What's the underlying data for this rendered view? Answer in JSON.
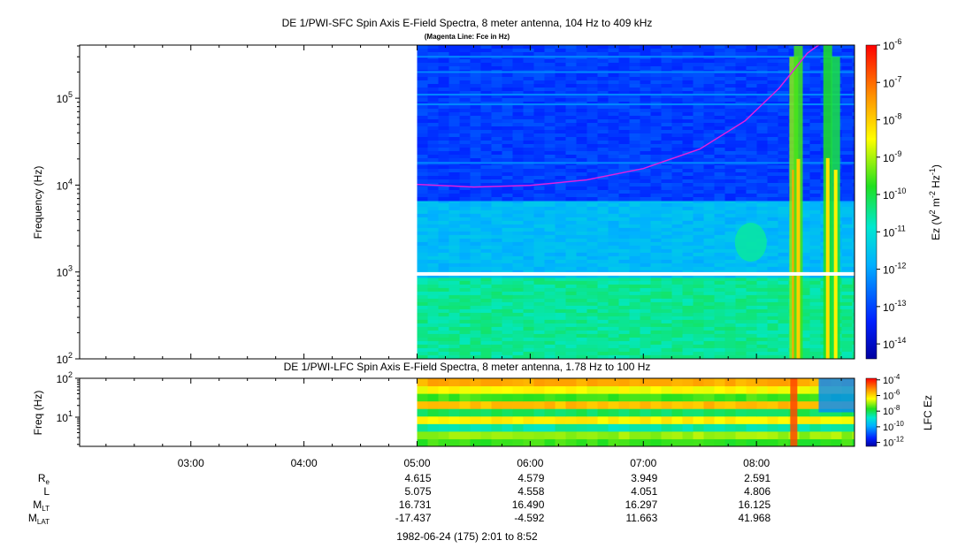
{
  "chart_data": [
    {
      "type": "heatmap",
      "title": "DE 1/PWI-SFC  Spin Axis E-Field Spectra, 8 meter antenna, 104 Hz to 409 kHz",
      "subtitle": "(Magenta Line: Fce in Hz)",
      "ylabel": "Frequency (Hz)",
      "yscale": "log",
      "ylim": [
        100,
        409000
      ],
      "yticks": [
        {
          "value": 100,
          "base": "10",
          "exp": "2"
        },
        {
          "value": 1000,
          "base": "10",
          "exp": "3"
        },
        {
          "value": 10000,
          "base": "10",
          "exp": "4"
        },
        {
          "value": 100000,
          "base": "10",
          "exp": "5"
        }
      ],
      "xlim_hours": [
        2.0167,
        8.8667
      ],
      "data_start_hours": 5.0,
      "colorbar": {
        "label_parts": [
          "Ez (V",
          "2",
          " m",
          "-2",
          " Hz",
          "-1",
          ")"
        ],
        "scale": "log",
        "range_exp": [
          -14.4,
          -6
        ],
        "ticks": [
          {
            "base": "10",
            "exp": "-6",
            "value_exp": -6
          },
          {
            "base": "10",
            "exp": "-7",
            "value_exp": -7
          },
          {
            "base": "10",
            "exp": "-8",
            "value_exp": -8
          },
          {
            "base": "10",
            "exp": "-9",
            "value_exp": -9
          },
          {
            "base": "10",
            "exp": "-10",
            "value_exp": -10
          },
          {
            "base": "10",
            "exp": "-11",
            "value_exp": -11
          },
          {
            "base": "10",
            "exp": "-12",
            "value_exp": -12
          },
          {
            "base": "10",
            "exp": "-13",
            "value_exp": -13
          },
          {
            "base": "10",
            "exp": "-14",
            "value_exp": -14
          }
        ]
      },
      "fce_line_color": "#e020e0",
      "fce_line": [
        {
          "t": 5.0,
          "f": 10200
        },
        {
          "t": 5.5,
          "f": 9500
        },
        {
          "t": 6.0,
          "f": 9900
        },
        {
          "t": 6.5,
          "f": 11500
        },
        {
          "t": 7.0,
          "f": 15500
        },
        {
          "t": 7.5,
          "f": 26000
        },
        {
          "t": 7.9,
          "f": 55000
        },
        {
          "t": 8.2,
          "f": 130000
        },
        {
          "t": 8.45,
          "f": 330000
        },
        {
          "t": 8.55,
          "f": 409000
        }
      ],
      "spectra_bands": [
        {
          "f_low": 100,
          "f_high": 950,
          "level_exp": -10.5
        },
        {
          "f_low": 950,
          "f_high": 6800,
          "level_exp": -11.7
        },
        {
          "f_low": 6800,
          "f_high": 409000,
          "level_exp": -13.1
        }
      ],
      "data_gap_hz": 950
    },
    {
      "type": "heatmap",
      "title": "DE 1/PWI-LFC  Spin Axis E-Field Spectra, 8 meter antenna, 1.78 Hz to 100 Hz",
      "ylabel": "Freq (Hz)",
      "yscale": "log",
      "ylim": [
        1.78,
        100
      ],
      "yticks": [
        {
          "value": 10,
          "base": "10",
          "exp": "1"
        },
        {
          "value": 100,
          "base": "10",
          "exp": "2"
        }
      ],
      "data_start_hours": 5.0,
      "colorbar": {
        "label": "LFC Ez",
        "scale": "log",
        "range_exp": [
          -12.5,
          -3.8
        ],
        "ticks": [
          {
            "base": "10",
            "exp": "-4",
            "value_exp": -4
          },
          {
            "base": "10",
            "exp": "-6",
            "value_exp": -6
          },
          {
            "base": "10",
            "exp": "-8",
            "value_exp": -8
          },
          {
            "base": "10",
            "exp": "-10",
            "value_exp": -10
          },
          {
            "base": "10",
            "exp": "-12",
            "value_exp": -12
          }
        ]
      },
      "band_levels_exp": [
        -7.6,
        -7.0,
        -8.6,
        -6.3,
        -8.1,
        -5.7,
        -7.5,
        -6.4,
        -5.5
      ]
    }
  ],
  "x_axis": {
    "ticks": [
      {
        "label": "03:00",
        "hours": 3
      },
      {
        "label": "04:00",
        "hours": 4
      },
      {
        "label": "05:00",
        "hours": 5
      },
      {
        "label": "06:00",
        "hours": 6
      },
      {
        "label": "07:00",
        "hours": 7
      },
      {
        "label": "08:00",
        "hours": 8
      }
    ],
    "minor_step_minutes": 15
  },
  "ephemeris": [
    {
      "label": "R",
      "sub": "e",
      "values": [
        "4.615",
        "4.579",
        "3.949",
        "2.591"
      ]
    },
    {
      "label": "L",
      "sub": "",
      "values": [
        "5.075",
        "4.558",
        "4.051",
        "4.806"
      ]
    },
    {
      "label": "M",
      "sub": "LT",
      "values": [
        "16.731",
        "16.490",
        "16.297",
        "16.125"
      ]
    },
    {
      "label": "M",
      "sub": "LAT",
      "values": [
        "-17.437",
        "-4.592",
        "11.663",
        "41.968"
      ]
    }
  ],
  "footer": "1982-06-24 (175) 2:01 to 8:52"
}
